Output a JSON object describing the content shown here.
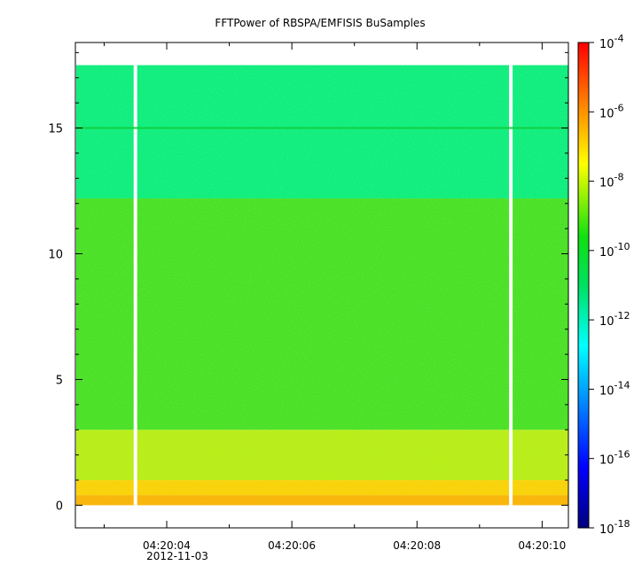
{
  "chart_data": {
    "type": "heatmap",
    "title": "FFTPower of RBSPA/EMFISIS  BuSamples",
    "xlabel": "",
    "ylabel": "",
    "x_date_label": "2012-11-03",
    "x_ticks": [
      "04:20:04",
      "04:20:06",
      "04:20:08",
      "04:20:10"
    ],
    "xlim_seconds": [
      2.54,
      10.42
    ],
    "ylim": [
      -0.9,
      18.4
    ],
    "y_ticks": [
      0,
      5,
      10,
      15
    ],
    "data_y_range": [
      0,
      17.5
    ],
    "data_gaps_seconds": [
      3.5,
      9.5
    ],
    "colorbar": {
      "scale": "log",
      "range_exponent": [
        -18,
        -4
      ],
      "tick_labels": [
        "10",
        "10",
        "10",
        "10",
        "10",
        "10",
        "10",
        "10"
      ],
      "tick_exponents": [
        "-4",
        "-6",
        "-8",
        "-10",
        "-12",
        "-14",
        "-16",
        "-18"
      ]
    },
    "bands": [
      {
        "y_range": [
          0,
          0.4
        ],
        "level": "1e-8",
        "color": "#ffb000"
      },
      {
        "y_range": [
          0.4,
          1.0
        ],
        "level": "1e-9",
        "color": "#ffd000"
      },
      {
        "y_range": [
          1.0,
          3.0
        ],
        "level": "1e-10",
        "color": "#b8ee10"
      },
      {
        "y_range": [
          3.0,
          12.2
        ],
        "level": "1e-11",
        "color": "#40e020"
      },
      {
        "y_range": [
          12.2,
          17.5
        ],
        "level": "1e-12",
        "color": "#00ee80"
      }
    ],
    "line_feature": {
      "y": 15.0,
      "color": "#10d040"
    }
  }
}
